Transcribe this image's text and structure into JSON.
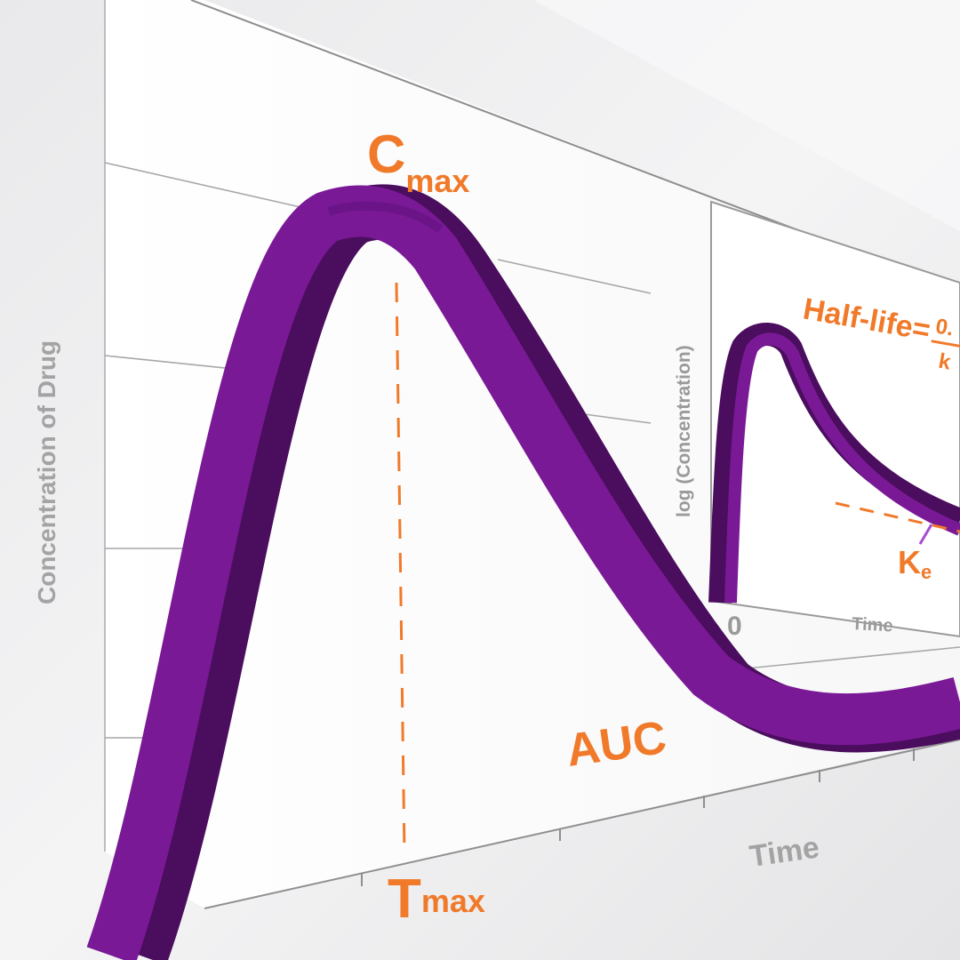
{
  "diagram": {
    "main_chart": {
      "y_axis_label": "Concentration of Drug",
      "x_axis_label": "Time",
      "peak_label": "C",
      "peak_label_sub": "max",
      "time_at_peak_label": "T",
      "time_at_peak_label_sub": "max",
      "area_label": "AUC"
    },
    "inset_chart": {
      "y_axis_label": "log (Concentration)",
      "x_axis_label": "Time",
      "origin_label": "0",
      "half_life_label": "Half-life=",
      "half_life_numerator": "0.",
      "half_life_denominator": "k",
      "elimination_label": "K",
      "elimination_label_sub": "e"
    },
    "colors": {
      "curve": "#7a1996",
      "curve_shadow": "#4b0d5e",
      "accent": "#f07a2a",
      "axis_text": "#a3a3a3"
    }
  }
}
